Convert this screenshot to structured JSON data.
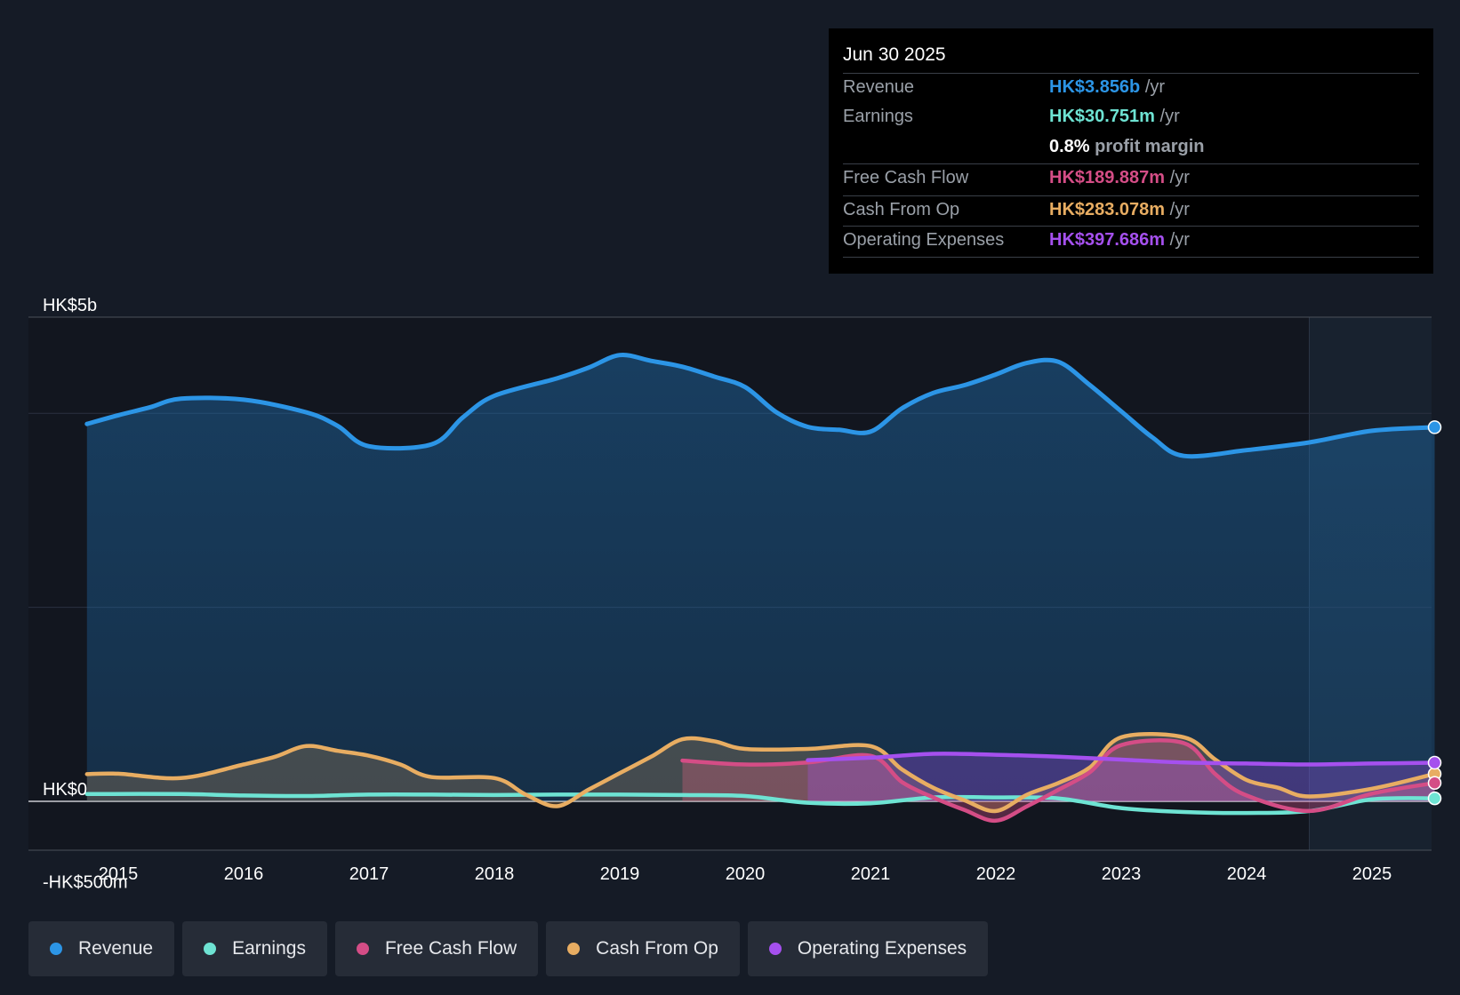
{
  "colors": {
    "revenue": "#2c95e6",
    "earnings": "#6ee3d3",
    "free_cash_flow": "#d44d86",
    "cash_from_op": "#e8ad62",
    "operating_expenses": "#a550ee",
    "background": "#151b26"
  },
  "tooltip": {
    "date": "Jun 30 2025",
    "rows": [
      {
        "label": "Revenue",
        "value": "HK$3.856b",
        "unit": "/yr"
      },
      {
        "label": "Earnings",
        "value": "HK$30.751m",
        "unit": "/yr"
      },
      {
        "label": "Free Cash Flow",
        "value": "HK$189.887m",
        "unit": "/yr"
      },
      {
        "label": "Cash From Op",
        "value": "HK$283.078m",
        "unit": "/yr"
      },
      {
        "label": "Operating Expenses",
        "value": "HK$397.686m",
        "unit": "/yr"
      }
    ],
    "profit_margin_value": "0.8%",
    "profit_margin_label": "profit margin"
  },
  "legend": [
    {
      "label": "Revenue",
      "icon": "revenue-dot-icon"
    },
    {
      "label": "Earnings",
      "icon": "earnings-dot-icon"
    },
    {
      "label": "Free Cash Flow",
      "icon": "free-cash-flow-dot-icon"
    },
    {
      "label": "Cash From Op",
      "icon": "cash-from-op-dot-icon"
    },
    {
      "label": "Operating Expenses",
      "icon": "operating-expenses-dot-icon"
    }
  ],
  "chart_data": {
    "type": "line",
    "title": "",
    "xlabel": "",
    "ylabel": "",
    "ylim": [
      -500,
      5000
    ],
    "y_axis_labels": [
      {
        "value": 5000,
        "label": "HK$5b"
      },
      {
        "value": 0,
        "label": "HK$0"
      },
      {
        "value": -500,
        "label": "-HK$500m"
      }
    ],
    "gridlines": [
      5000,
      4000,
      2000,
      0
    ],
    "xlim": [
      2014.3,
      2025.5
    ],
    "x_ticks": [
      "2015",
      "2016",
      "2017",
      "2018",
      "2019",
      "2020",
      "2021",
      "2022",
      "2023",
      "2024",
      "2025"
    ],
    "forecast_shading_start": 2024.5,
    "series": [
      {
        "key": "revenue",
        "name": "Revenue",
        "area": true,
        "points": [
          [
            2014.75,
            3890
          ],
          [
            2015.0,
            3980
          ],
          [
            2015.25,
            4060
          ],
          [
            2015.5,
            4150
          ],
          [
            2016.0,
            4140
          ],
          [
            2016.5,
            4010
          ],
          [
            2016.75,
            3870
          ],
          [
            2017.0,
            3660
          ],
          [
            2017.5,
            3680
          ],
          [
            2017.75,
            3960
          ],
          [
            2018.0,
            4180
          ],
          [
            2018.5,
            4360
          ],
          [
            2018.75,
            4470
          ],
          [
            2019.0,
            4600
          ],
          [
            2019.25,
            4540
          ],
          [
            2019.5,
            4480
          ],
          [
            2019.75,
            4380
          ],
          [
            2020.0,
            4270
          ],
          [
            2020.25,
            4010
          ],
          [
            2020.5,
            3860
          ],
          [
            2020.75,
            3830
          ],
          [
            2021.0,
            3810
          ],
          [
            2021.25,
            4050
          ],
          [
            2021.5,
            4210
          ],
          [
            2021.75,
            4290
          ],
          [
            2022.0,
            4400
          ],
          [
            2022.25,
            4520
          ],
          [
            2022.5,
            4530
          ],
          [
            2022.75,
            4290
          ],
          [
            2023.0,
            4020
          ],
          [
            2023.25,
            3750
          ],
          [
            2023.5,
            3560
          ],
          [
            2024.0,
            3620
          ],
          [
            2024.5,
            3700
          ],
          [
            2025.0,
            3820
          ],
          [
            2025.5,
            3856
          ]
        ]
      },
      {
        "key": "earnings",
        "name": "Earnings",
        "area": false,
        "points": [
          [
            2014.75,
            75
          ],
          [
            2015.5,
            75
          ],
          [
            2016.0,
            60
          ],
          [
            2016.5,
            55
          ],
          [
            2017.0,
            70
          ],
          [
            2017.5,
            70
          ],
          [
            2018.0,
            65
          ],
          [
            2018.5,
            70
          ],
          [
            2019.0,
            70
          ],
          [
            2019.5,
            65
          ],
          [
            2020.0,
            55
          ],
          [
            2020.5,
            -15
          ],
          [
            2021.0,
            -20
          ],
          [
            2021.5,
            40
          ],
          [
            2022.0,
            40
          ],
          [
            2022.5,
            30
          ],
          [
            2023.0,
            -70
          ],
          [
            2023.5,
            -110
          ],
          [
            2024.0,
            -120
          ],
          [
            2024.5,
            -100
          ],
          [
            2025.0,
            20
          ],
          [
            2025.5,
            31
          ]
        ]
      },
      {
        "key": "free_cash_flow",
        "name": "Free Cash Flow",
        "area": true,
        "points": [
          [
            2019.5,
            420
          ],
          [
            2020.0,
            380
          ],
          [
            2020.5,
            400
          ],
          [
            2021.0,
            470
          ],
          [
            2021.25,
            200
          ],
          [
            2021.5,
            40
          ],
          [
            2021.75,
            -90
          ],
          [
            2022.0,
            -200
          ],
          [
            2022.25,
            -50
          ],
          [
            2022.5,
            120
          ],
          [
            2022.75,
            300
          ],
          [
            2023.0,
            580
          ],
          [
            2023.5,
            600
          ],
          [
            2023.75,
            280
          ],
          [
            2024.0,
            60
          ],
          [
            2024.5,
            -100
          ],
          [
            2025.0,
            80
          ],
          [
            2025.5,
            190
          ]
        ]
      },
      {
        "key": "cash_from_op",
        "name": "Cash From Op",
        "area": true,
        "points": [
          [
            2014.75,
            280
          ],
          [
            2015.0,
            285
          ],
          [
            2015.5,
            240
          ],
          [
            2016.0,
            380
          ],
          [
            2016.25,
            460
          ],
          [
            2016.5,
            570
          ],
          [
            2016.75,
            520
          ],
          [
            2017.0,
            470
          ],
          [
            2017.25,
            380
          ],
          [
            2017.5,
            250
          ],
          [
            2018.0,
            240
          ],
          [
            2018.25,
            70
          ],
          [
            2018.5,
            -50
          ],
          [
            2018.75,
            120
          ],
          [
            2019.0,
            290
          ],
          [
            2019.25,
            460
          ],
          [
            2019.5,
            640
          ],
          [
            2019.75,
            620
          ],
          [
            2020.0,
            540
          ],
          [
            2020.5,
            540
          ],
          [
            2021.0,
            570
          ],
          [
            2021.25,
            330
          ],
          [
            2021.5,
            140
          ],
          [
            2021.75,
            10
          ],
          [
            2022.0,
            -100
          ],
          [
            2022.25,
            70
          ],
          [
            2022.5,
            190
          ],
          [
            2022.75,
            350
          ],
          [
            2023.0,
            660
          ],
          [
            2023.5,
            660
          ],
          [
            2023.75,
            430
          ],
          [
            2024.0,
            220
          ],
          [
            2024.25,
            140
          ],
          [
            2024.5,
            50
          ],
          [
            2025.0,
            130
          ],
          [
            2025.5,
            283
          ]
        ]
      },
      {
        "key": "operating_expenses",
        "name": "Operating Expenses",
        "area": true,
        "points": [
          [
            2020.5,
            425
          ],
          [
            2021.0,
            450
          ],
          [
            2021.5,
            490
          ],
          [
            2022.0,
            480
          ],
          [
            2022.5,
            460
          ],
          [
            2023.0,
            430
          ],
          [
            2023.5,
            400
          ],
          [
            2024.0,
            390
          ],
          [
            2024.5,
            380
          ],
          [
            2025.0,
            390
          ],
          [
            2025.5,
            398
          ]
        ]
      }
    ]
  }
}
